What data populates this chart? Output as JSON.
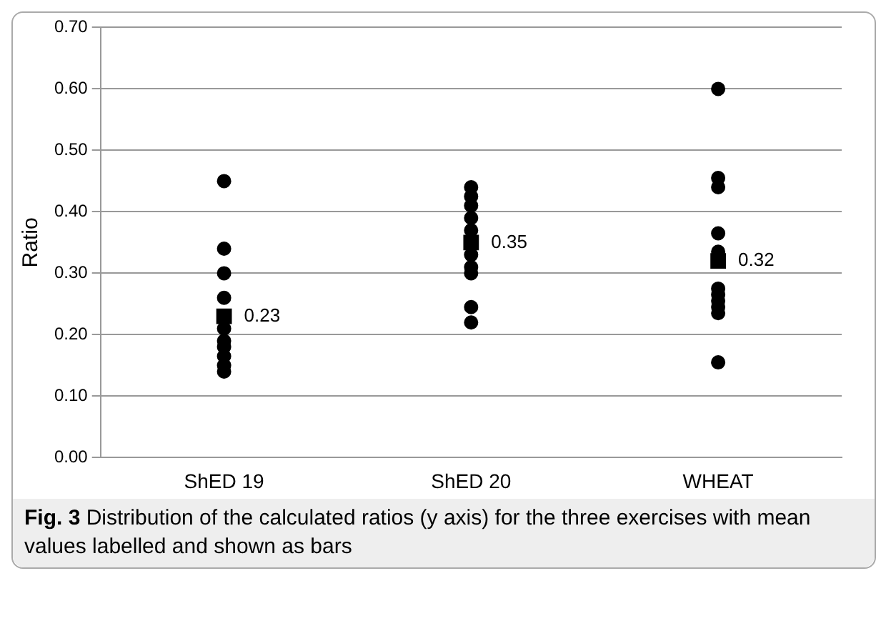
{
  "chart_data": {
    "type": "scatter",
    "ylabel": "Ratio",
    "categories": [
      "ShED 19",
      "ShED 20",
      "WHEAT"
    ],
    "ylim": [
      0,
      0.7
    ],
    "yticks": [
      {
        "value": 0,
        "label": "0.00"
      },
      {
        "value": 0.1,
        "label": "0.10"
      },
      {
        "value": 0.2,
        "label": "0.20"
      },
      {
        "value": 0.3,
        "label": "0.30"
      },
      {
        "value": 0.4,
        "label": "0.40"
      },
      {
        "value": 0.5,
        "label": "0.50"
      },
      {
        "value": 0.6,
        "label": "0.60"
      },
      {
        "value": 0.7,
        "label": "0.70"
      }
    ],
    "grid": "y",
    "marker": "circle",
    "legend": false,
    "series": [
      {
        "color": "#000000",
        "x": [
          "ShED 19",
          "ShED 19",
          "ShED 19",
          "ShED 19",
          "ShED 19",
          "ShED 19",
          "ShED 19",
          "ShED 19",
          "ShED 19",
          "ShED 19",
          "ShED 20",
          "ShED 20",
          "ShED 20",
          "ShED 20",
          "ShED 20",
          "ShED 20",
          "ShED 20",
          "ShED 20",
          "ShED 20",
          "ShED 20",
          "WHEAT",
          "WHEAT",
          "WHEAT",
          "WHEAT",
          "WHEAT",
          "WHEAT",
          "WHEAT",
          "WHEAT",
          "WHEAT",
          "WHEAT",
          "WHEAT"
        ],
        "values": [
          0.45,
          0.34,
          0.3,
          0.26,
          0.21,
          0.19,
          0.18,
          0.165,
          0.15,
          0.14,
          0.44,
          0.425,
          0.41,
          0.39,
          0.37,
          0.33,
          0.31,
          0.3,
          0.245,
          0.22,
          0.6,
          0.455,
          0.44,
          0.365,
          0.335,
          0.275,
          0.265,
          0.255,
          0.245,
          0.235,
          0.155
        ]
      },
      {
        "type": "scatter",
        "marker": "square",
        "color": "#000000",
        "x": [
          "ShED 19",
          "ShED 20",
          "WHEAT"
        ],
        "values": [
          0.23,
          0.35,
          0.32
        ],
        "value_labels": [
          "0.23",
          "0.35",
          "0.32"
        ]
      }
    ],
    "annotations": [
      "Fig. 3 Distribution of the calculated ratios (y axis) for the three exercises with mean values labelled and shown as bars"
    ]
  }
}
